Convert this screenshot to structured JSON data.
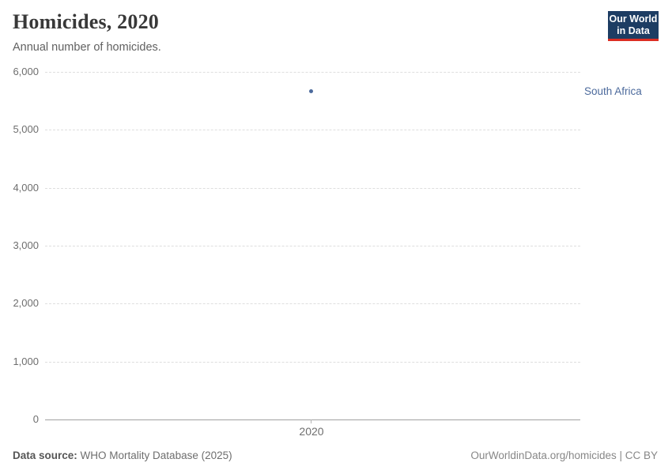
{
  "header": {
    "title": "Homicides, 2020",
    "subtitle": "Annual number of homicides.",
    "logo": {
      "line1": "Our World",
      "line2": "in Data",
      "bg_color": "#1d3d63",
      "accent_color": "#dc2d22"
    }
  },
  "chart_data": {
    "type": "scatter",
    "title": "Homicides, 2020",
    "subtitle": "Annual number of homicides.",
    "series": [
      {
        "name": "South Africa",
        "x": 2020,
        "y": 5660,
        "color": "#4c6a9c"
      }
    ],
    "xlabel": "",
    "ylabel": "",
    "x_ticks": [
      {
        "value": 2020,
        "label": "2020"
      }
    ],
    "y_ticks": [
      {
        "value": 0,
        "label": "0"
      },
      {
        "value": 1000,
        "label": "1,000"
      },
      {
        "value": 2000,
        "label": "2,000"
      },
      {
        "value": 3000,
        "label": "3,000"
      },
      {
        "value": 4000,
        "label": "4,000"
      },
      {
        "value": 5000,
        "label": "5,000"
      },
      {
        "value": 6000,
        "label": "6,000"
      }
    ],
    "ylim": [
      0,
      6000
    ],
    "grid": "horizontal-dashed",
    "legend_position": "label-right-of-point"
  },
  "footer": {
    "data_source_label": "Data source:",
    "data_source_value": "WHO Mortality Database (2025)",
    "attribution": "OurWorldinData.org/homicides | CC BY"
  }
}
